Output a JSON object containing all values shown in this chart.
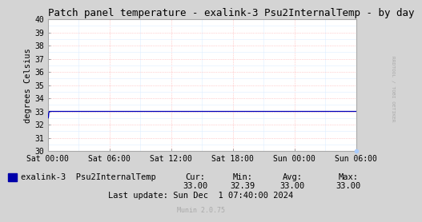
{
  "title": "Patch panel temperature - exalink-3 Psu2InternalTemp - by day",
  "ylabel": "degrees Celsius",
  "bg_color": "#d4d4d4",
  "plot_bg_color": "#ffffff",
  "grid_color": "#ffaaaa",
  "grid_color_minor": "#ddeeff",
  "line_color": "#0000bb",
  "ylim": [
    30,
    40
  ],
  "yticks": [
    30,
    31,
    32,
    33,
    34,
    35,
    36,
    37,
    38,
    39,
    40
  ],
  "x_start": 0,
  "x_end": 30,
  "xtick_labels": [
    "Sat 00:00",
    "Sat 06:00",
    "Sat 12:00",
    "Sat 18:00",
    "Sun 00:00",
    "Sun 06:00"
  ],
  "xtick_positions": [
    0,
    6,
    12,
    18,
    24,
    30
  ],
  "legend_label": "exalink-3  Psu2InternalTemp",
  "legend_color": "#0000aa",
  "cur": "33.00",
  "min": "32.39",
  "avg": "33.00",
  "max": "33.00",
  "last_update": "Last update: Sun Dec  1 07:40:00 2024",
  "munin_version": "Munin 2.0.75",
  "title_fontsize": 9,
  "axis_fontsize": 7.5,
  "tick_fontsize": 7,
  "legend_fontsize": 7.5,
  "stats_fontsize": 7.5,
  "watermark": "RRDTOOL / TOBI OETIKER",
  "line_x": [
    0,
    0.04,
    0.07,
    0.1,
    0.14,
    0.2,
    0.5,
    30
  ],
  "line_y": [
    32.8,
    32.5,
    32.6,
    32.9,
    33.0,
    33.0,
    33.0,
    33.0
  ]
}
